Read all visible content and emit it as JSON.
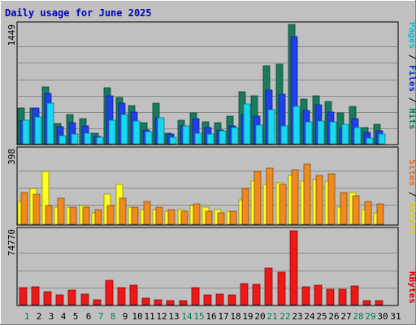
{
  "chart_data": {
    "type": "bar",
    "title": "Daily usage for June 2025",
    "days": [
      "1",
      "2",
      "3",
      "4",
      "5",
      "6",
      "7",
      "8",
      "9",
      "10",
      "11",
      "12",
      "13",
      "14",
      "15",
      "16",
      "17",
      "18",
      "19",
      "20",
      "21",
      "22",
      "23",
      "24",
      "25",
      "26",
      "27",
      "28",
      "29",
      "30",
      "31"
    ],
    "weekend_days": [
      "1",
      "7",
      "8",
      "14",
      "15",
      "21",
      "22",
      "28",
      "29"
    ],
    "panels": [
      {
        "name": "hits-files-pages",
        "ymax_label": "1449",
        "ylim": [
          0,
          1449
        ],
        "side_labels": [
          {
            "text": "Pages",
            "color": "#00c0e0"
          },
          {
            "text": " / ",
            "color": "#000000"
          },
          {
            "text": "Files",
            "color": "#0030d0"
          },
          {
            "text": " / ",
            "color": "#000000"
          },
          {
            "text": "Hits",
            "color": "#008060"
          }
        ],
        "series": [
          {
            "name": "Hits",
            "color": "#1a7a5e",
            "values": [
              430,
              430,
              690,
              250,
              350,
              310,
              130,
              680,
              560,
              460,
              260,
              490,
              130,
              290,
              370,
              270,
              260,
              340,
              630,
              580,
              950,
              970,
              1449,
              540,
              580,
              510,
              370,
              450,
              200,
              240,
              0
            ]
          },
          {
            "name": "Files",
            "color": "#1f40e8",
            "values": [
              290,
              430,
              610,
              210,
              260,
              220,
              90,
              580,
              490,
              380,
              170,
              320,
              120,
              220,
              310,
              200,
              170,
              220,
              350,
              340,
              650,
              600,
              1300,
              400,
              470,
              380,
              200,
              310,
              140,
              160,
              0
            ]
          },
          {
            "name": "Pages",
            "color": "#18d8f0",
            "values": [
              290,
              330,
              490,
              100,
              120,
              130,
              80,
              290,
              350,
              280,
              150,
              320,
              80,
              220,
              130,
              120,
              160,
              200,
              480,
              230,
              410,
              220,
              450,
              270,
              280,
              270,
              240,
              200,
              70,
              120,
              0
            ]
          }
        ]
      },
      {
        "name": "sites-visits",
        "ymax_label": "398",
        "ylim": [
          0,
          398
        ],
        "side_labels": [
          {
            "text": "Sites",
            "color": "#e07020"
          },
          {
            "text": " / ",
            "color": "#000000"
          },
          {
            "text": "Visits",
            "color": "#e0d000"
          }
        ],
        "series": [
          {
            "name": "Visits",
            "color": "#ffff20",
            "values": [
              120,
              190,
              280,
              90,
              90,
              100,
              60,
              160,
              210,
              90,
              80,
              80,
              70,
              80,
              100,
              90,
              80,
              70,
              130,
              230,
              210,
              220,
              260,
              230,
              240,
              230,
              90,
              170,
              80,
              60,
              0
            ]
          },
          {
            "name": "Sites",
            "color": "#f08a20",
            "values": [
              170,
              160,
              100,
              140,
              90,
              90,
              80,
              100,
              140,
              90,
              120,
              90,
              80,
              70,
              110,
              70,
              60,
              70,
              190,
              280,
              300,
              210,
              290,
              320,
              260,
              270,
              170,
              150,
              120,
              110,
              0
            ]
          }
        ]
      },
      {
        "name": "kbytes",
        "ymax_label": "74770",
        "ylim": [
          0,
          74770
        ],
        "side_labels": [
          {
            "text": "KBytes",
            "color": "#e00000"
          }
        ],
        "series": [
          {
            "name": "KBytes",
            "color": "#ee1818",
            "values": [
              17000,
              18000,
              13000,
              10000,
              14500,
              11000,
              5000,
              24500,
              17000,
              19700,
              6800,
              4900,
              4000,
              4000,
              17500,
              10200,
              10900,
              10000,
              21400,
              20700,
              37000,
              33000,
              74770,
              18100,
              19700,
              15500,
              16000,
              18700,
              4500,
              4500,
              0
            ]
          }
        ]
      }
    ]
  }
}
